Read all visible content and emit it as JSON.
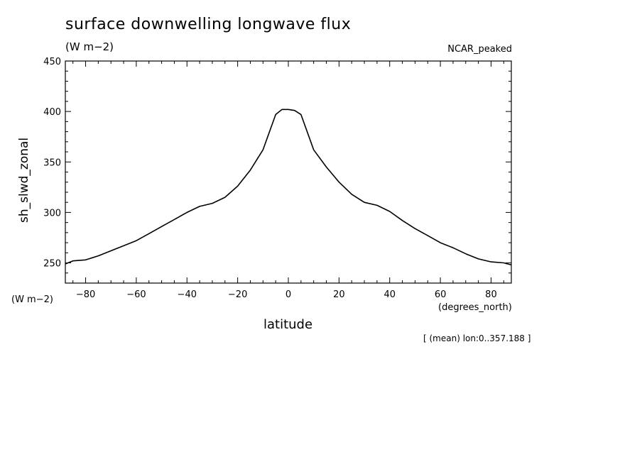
{
  "chart_data": {
    "type": "line",
    "title": "surface downwelling longwave flux",
    "units_label": "(W m−2)",
    "dataset_label": "NCAR_peaked",
    "ylabel": "sh_slwd_zonal",
    "y_units_label": "(W m−2)",
    "xlabel": "latitude",
    "x_units_label": "(degrees_north)",
    "footnote": "[ (mean) lon:0..357.188 ]",
    "xlim": [
      -88,
      88
    ],
    "ylim": [
      230,
      450
    ],
    "x_ticks": [
      -80,
      -60,
      -40,
      -20,
      0,
      20,
      40,
      60,
      80
    ],
    "x_tick_labels": [
      "−80",
      "−60",
      "−40",
      "−20",
      "0",
      "20",
      "40",
      "60",
      "80"
    ],
    "y_ticks": [
      250,
      300,
      350,
      400,
      450
    ],
    "y_tick_labels": [
      "250",
      "300",
      "350",
      "400",
      "450"
    ],
    "grid": false,
    "series": [
      {
        "x": [
          -88,
          -85,
          -80,
          -75,
          -70,
          -65,
          -60,
          -55,
          -50,
          -45,
          -40,
          -35,
          -30,
          -25,
          -20,
          -15,
          -10,
          -5,
          -2.5,
          0,
          2.5,
          5,
          10,
          15,
          20,
          25,
          30,
          35,
          40,
          45,
          50,
          55,
          60,
          65,
          70,
          75,
          80,
          85,
          88
        ],
        "values": [
          249,
          252,
          253,
          257,
          262,
          267,
          272,
          279,
          286,
          293,
          300,
          306,
          309,
          315,
          326,
          342,
          362,
          397,
          402,
          402,
          401,
          397,
          362,
          345,
          330,
          318,
          310,
          307,
          301,
          292,
          284,
          277,
          270,
          265,
          259,
          254,
          251,
          250,
          248
        ]
      }
    ]
  }
}
